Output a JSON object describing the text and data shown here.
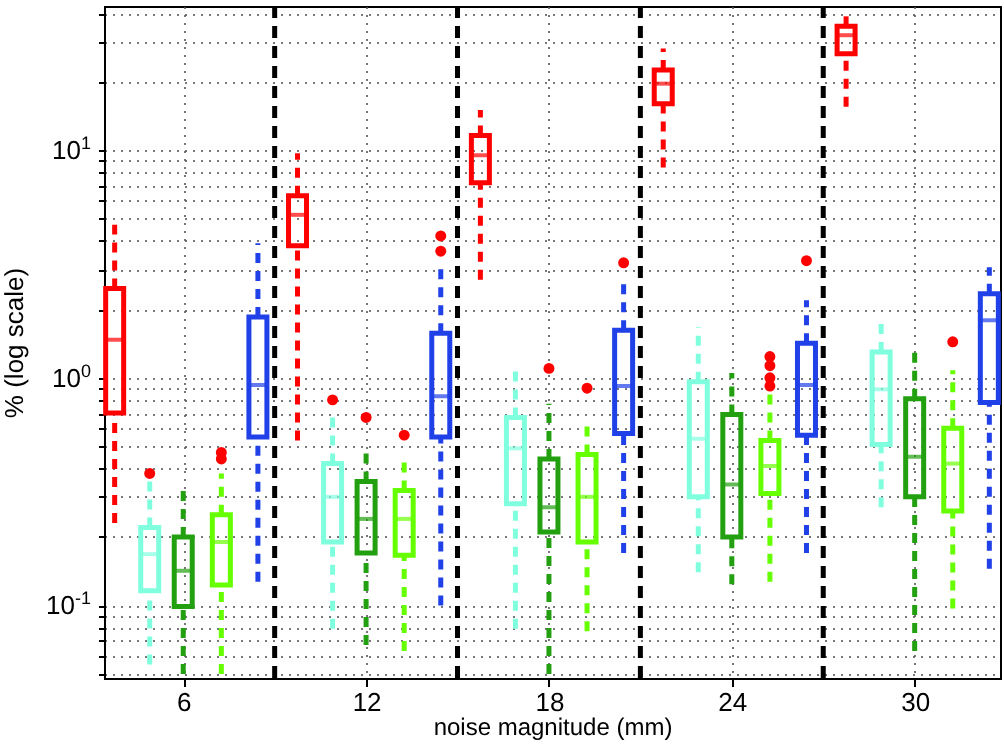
{
  "chart_data": {
    "type": "box",
    "xlabel": "noise magnitude (mm)",
    "ylabel": "% (log scale)",
    "log": "y",
    "grid": true,
    "xlim": [
      3.4,
      32.8
    ],
    "xticks": [
      6,
      12,
      18,
      24,
      30
    ],
    "ylim": [
      0.048,
      43
    ],
    "yticks": [
      {
        "value": 0.05,
        "label": null
      },
      {
        "value": 0.06,
        "label": null
      },
      {
        "value": 0.07,
        "label": null
      },
      {
        "value": 0.08,
        "label": null
      },
      {
        "value": 0.09,
        "label": null
      },
      {
        "value": 0.1,
        "label": "10$^{-1}$"
      },
      {
        "value": 0.2,
        "label": null
      },
      {
        "value": 0.3,
        "label": null
      },
      {
        "value": 0.4,
        "label": null
      },
      {
        "value": 0.5,
        "label": null
      },
      {
        "value": 0.6,
        "label": null
      },
      {
        "value": 0.7,
        "label": null
      },
      {
        "value": 0.8,
        "label": null
      },
      {
        "value": 0.9,
        "label": null
      },
      {
        "value": 1,
        "label": "10$^{0}$"
      },
      {
        "value": 2,
        "label": null
      },
      {
        "value": 3,
        "label": null
      },
      {
        "value": 4,
        "label": null
      },
      {
        "value": 5,
        "label": null
      },
      {
        "value": 6,
        "label": null
      },
      {
        "value": 7,
        "label": null
      },
      {
        "value": 8,
        "label": null
      },
      {
        "value": 9,
        "label": null
      },
      {
        "value": 10,
        "label": "10$^{1}$"
      },
      {
        "value": 20,
        "label": null
      },
      {
        "value": 30,
        "label": null
      },
      {
        "value": 40,
        "label": null
      }
    ],
    "ref_lines": [
      {
        "axis": "x",
        "value": 9,
        "color": "#000000",
        "line_style": "dashed"
      },
      {
        "axis": "x",
        "value": 15,
        "color": "#000000",
        "line_style": "dashed"
      },
      {
        "axis": "x",
        "value": 21,
        "color": "#000000",
        "line_style": "dashed"
      },
      {
        "axis": "x",
        "value": 27,
        "color": "#000000",
        "line_style": "dashed"
      }
    ],
    "series": [
      {
        "color": "#ff0000",
        "x": [
          3.75,
          9.75,
          15.75,
          21.75,
          27.75
        ],
        "boxes": [
          {
            "low": 0.23,
            "q1": 0.7,
            "median": 1.47,
            "q3": 2.47,
            "high": 4.7
          },
          {
            "low": 0.53,
            "q1": 3.8,
            "median": 5.2,
            "q3": 6.3,
            "high": 9.7
          },
          {
            "low": 2.7,
            "q1": 7.2,
            "median": 9.5,
            "q3": 11.6,
            "high": 15
          },
          {
            "low": 8.4,
            "q1": 16,
            "median": 19.6,
            "q3": 22.5,
            "high": 28
          },
          {
            "low": 15.5,
            "q1": 26.5,
            "median": 32,
            "q3": 35,
            "high": 40
          }
        ]
      },
      {
        "color": "#80ffdf",
        "x": [
          4.9,
          10.9,
          16.9,
          22.9,
          28.9
        ],
        "boxes": [
          {
            "low": 0.055,
            "q1": 0.116,
            "median": 0.168,
            "q3": 0.22,
            "high": 0.36,
            "outliers": [
              0.38
            ]
          },
          {
            "low": 0.079,
            "q1": 0.19,
            "median": 0.3,
            "q3": 0.42,
            "high": 0.68,
            "outliers": [
              0.8
            ]
          },
          {
            "low": 0.079,
            "q1": 0.28,
            "median": 0.49,
            "q3": 0.67,
            "high": 1.1
          },
          {
            "low": 0.14,
            "q1": 0.3,
            "median": 0.54,
            "q3": 0.96,
            "high": 1.67
          },
          {
            "low": 0.27,
            "q1": 0.51,
            "median": 0.89,
            "q3": 1.3,
            "high": 1.8
          }
        ]
      },
      {
        "color": "#22a010",
        "x": [
          6,
          12,
          18,
          24,
          30
        ],
        "boxes": [
          {
            "low": 0.05,
            "q1": 0.099,
            "median": 0.142,
            "q3": 0.2,
            "high": 0.33
          },
          {
            "low": 0.067,
            "q1": 0.17,
            "median": 0.24,
            "q3": 0.35,
            "high": 0.49,
            "outliers": [
              0.67
            ]
          },
          {
            "low": 0.05,
            "q1": 0.21,
            "median": 0.27,
            "q3": 0.44,
            "high": 0.77,
            "outliers": [
              1.1
            ]
          },
          {
            "low": 0.124,
            "q1": 0.2,
            "median": 0.34,
            "q3": 0.69,
            "high": 1.05
          },
          {
            "low": 0.063,
            "q1": 0.3,
            "median": 0.45,
            "q3": 0.81,
            "high": 1.39
          }
        ]
      },
      {
        "color": "#66ff00",
        "x": [
          7.25,
          13.25,
          19.25,
          25.25,
          31.25
        ],
        "boxes": [
          {
            "low": 0.05,
            "q1": 0.123,
            "median": 0.19,
            "q3": 0.25,
            "high": 0.38,
            "outliers": [
              0.44,
              0.47
            ]
          },
          {
            "low": 0.063,
            "q1": 0.166,
            "median": 0.24,
            "q3": 0.32,
            "high": 0.45,
            "outliers": [
              0.56
            ]
          },
          {
            "low": 0.077,
            "q1": 0.19,
            "median": 0.3,
            "q3": 0.46,
            "high": 0.64,
            "outliers": [
              0.9
            ]
          },
          {
            "low": 0.127,
            "q1": 0.31,
            "median": 0.41,
            "q3": 0.53,
            "high": 0.86,
            "outliers": [
              0.92,
              1.0,
              1.13,
              1.24
            ]
          },
          {
            "low": 0.097,
            "q1": 0.26,
            "median": 0.42,
            "q3": 0.6,
            "high": 1.08,
            "outliers": [
              1.44
            ]
          }
        ]
      },
      {
        "color": "#2040e8",
        "x": [
          8.45,
          14.45,
          20.45,
          26.45,
          32.45
        ],
        "boxes": [
          {
            "low": 0.127,
            "q1": 0.55,
            "median": 0.93,
            "q3": 1.85,
            "high": 3.9
          },
          {
            "low": 0.1,
            "q1": 0.55,
            "median": 0.83,
            "q3": 1.57,
            "high": 3.06,
            "outliers": [
              3.6,
              4.2
            ]
          },
          {
            "low": 0.17,
            "q1": 0.57,
            "median": 0.92,
            "q3": 1.62,
            "high": 2.77,
            "outliers": [
              3.2
            ]
          },
          {
            "low": 0.17,
            "q1": 0.56,
            "median": 0.93,
            "q3": 1.42,
            "high": 2.19,
            "outliers": [
              3.27
            ]
          },
          {
            "low": 0.145,
            "q1": 0.78,
            "median": 1.79,
            "q3": 2.34,
            "high": 3.06
          }
        ]
      }
    ]
  }
}
